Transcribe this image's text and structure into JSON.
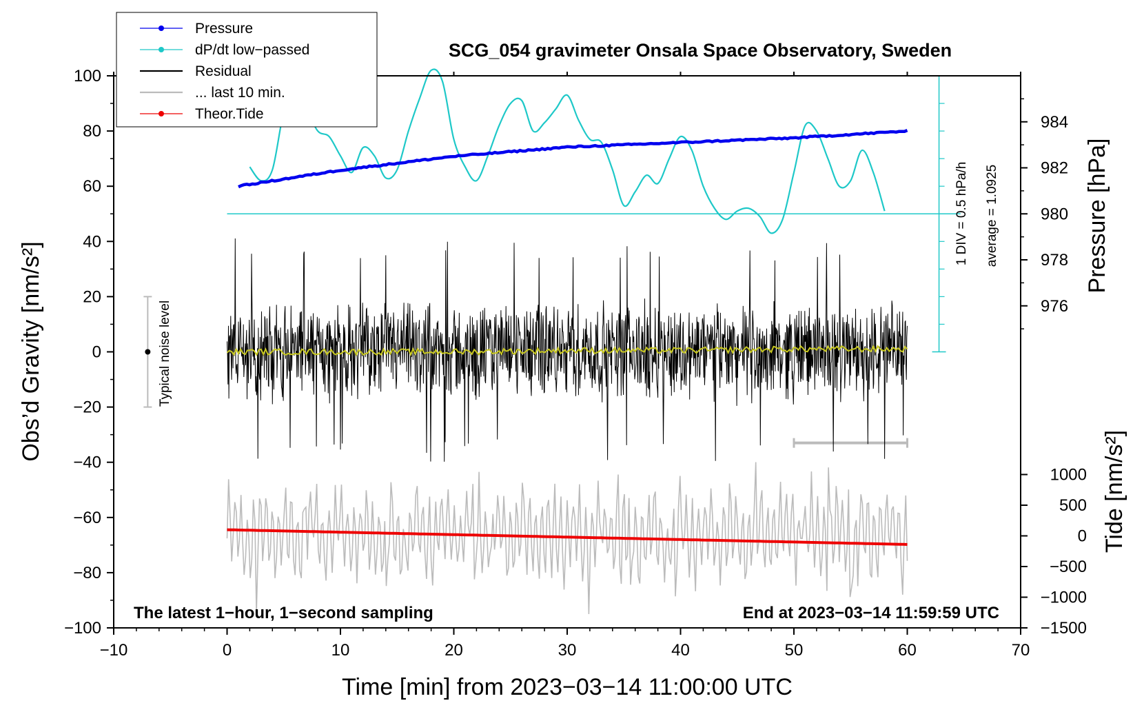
{
  "chart_data": {
    "type": "line",
    "title": "SCG_054 gravimeter Onsala Space Observatory, Sweden",
    "xlabel": "Time [min] from 2023−03−14 11:00:00 UTC",
    "ylabel_left": "Obs’d Gravity [nm/s²]",
    "ylabel_right_top": "Pressure [hPa]",
    "ylabel_right_bottom": "Tide [nm/s²]",
    "xlim": [
      -10,
      70
    ],
    "ylim": [
      -100,
      100
    ],
    "x_ticks": [
      -10,
      0,
      10,
      20,
      30,
      40,
      50,
      60,
      70
    ],
    "y_ticks": [
      100,
      80,
      60,
      40,
      20,
      0,
      -20,
      -40,
      -60,
      -80,
      -100
    ],
    "pressure_axis": {
      "ticks": [
        984,
        982,
        980,
        978,
        976
      ],
      "mapping": {
        "value_at_gravity_0": 974,
        "value_at_gravity_100": 986
      }
    },
    "tide_axis": {
      "ticks": [
        1000,
        500,
        0,
        -500,
        -1000,
        -1500
      ],
      "mapping": {
        "value_at_gravity_minus100": -1500,
        "value_at_gravity_minus66_67": 0
      }
    },
    "legend": [
      {
        "label": "Pressure",
        "color": "#0000ee",
        "style": "line-dot"
      },
      {
        "label": "dP/dt low−passed",
        "color": "#1ec8c8",
        "style": "line-dot"
      },
      {
        "label": "Residual",
        "color": "#000000",
        "style": "line"
      },
      {
        "label": "... last 10 min.",
        "color": "#bbbbbb",
        "style": "line"
      },
      {
        "label": "Theor.Tide",
        "color": "#ee0000",
        "style": "line-dot"
      }
    ],
    "series": [
      {
        "name": "Pressure",
        "color": "#0000ee",
        "units": "hPa",
        "x": [
          1,
          10,
          20,
          30,
          40,
          50,
          60
        ],
        "y": [
          981.2,
          981.9,
          982.5,
          982.9,
          983.1,
          983.3,
          983.6
        ]
      },
      {
        "name": "dP/dt low-passed",
        "color": "#1ec8c8",
        "units": "gravity-axis position",
        "x": [
          2,
          3,
          4,
          5,
          6,
          7,
          8,
          9,
          10,
          11,
          12,
          13,
          14,
          15,
          16,
          17,
          18,
          19,
          20,
          21,
          22,
          23,
          24,
          25,
          26,
          27,
          28,
          29,
          30,
          31,
          32,
          33,
          34,
          35,
          36,
          37,
          38,
          39,
          40,
          41,
          42,
          43,
          44,
          45,
          46,
          47,
          48,
          49,
          50,
          51,
          52,
          53,
          54,
          55,
          56,
          57,
          58
        ],
        "y": [
          67,
          62,
          66,
          87,
          96,
          88,
          80,
          78,
          71,
          65,
          74,
          71,
          63,
          66,
          80,
          92,
          102,
          98,
          77,
          67,
          62,
          71,
          82,
          90,
          91,
          80,
          83,
          88,
          93,
          84,
          77,
          76,
          66,
          53,
          58,
          64,
          61,
          70,
          78,
          73,
          60,
          52,
          48,
          51,
          52,
          49,
          43,
          48,
          65,
          82,
          80,
          70,
          60,
          62,
          73,
          65,
          51
        ]
      },
      {
        "name": "Residual",
        "color": "#000000",
        "units": "nm/s²",
        "x": [
          0,
          60
        ],
        "y_range": [
          -40,
          43
        ],
        "typical_amplitude": 20
      },
      {
        "name": "Residual smoothed",
        "color": "#c8c820",
        "units": "nm/s²",
        "x": [
          0,
          10,
          20,
          30,
          40,
          50,
          60
        ],
        "y": [
          0,
          0,
          0,
          0.5,
          0.5,
          1,
          1
        ]
      },
      {
        "name": "... last 10 min.",
        "color": "#bbbbbb",
        "units": "gravity-axis position",
        "x": [
          0,
          60
        ],
        "center": -66,
        "amplitude_range": [
          -95,
          -35
        ]
      },
      {
        "name": "Theor.Tide",
        "color": "#ee0000",
        "units": "nm/s²",
        "x": [
          0,
          60
        ],
        "y": [
          100,
          -140
        ]
      }
    ],
    "dpdt_reference": {
      "value": 980,
      "scale_label": "1 DIV = 0.5 hPa/h",
      "average_label": "average = 1.0925"
    },
    "noise_bar": {
      "x": -7,
      "center": 0,
      "half_range": 20,
      "label": "Typical noise level"
    },
    "last10_bar": {
      "x_range": [
        50,
        60
      ],
      "y": -33
    },
    "annotations": {
      "bottom_left": "The latest 1−hour, 1−second sampling",
      "bottom_right": "End at 2023−03−14 11:59:59 UTC"
    }
  }
}
